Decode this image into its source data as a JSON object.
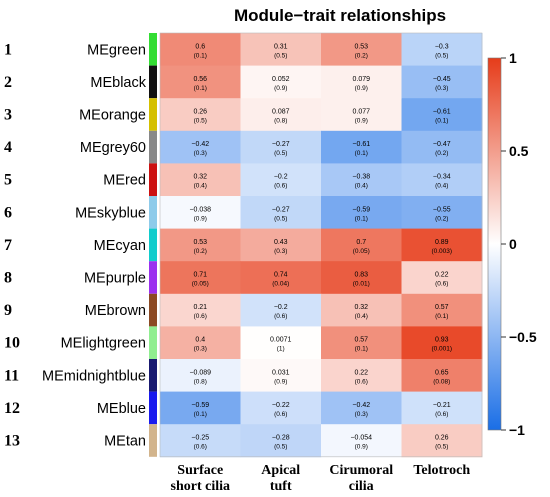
{
  "chart_data": {
    "type": "heatmap",
    "title": "Module−trait relationships",
    "columns": [
      [
        "Surface",
        "short cilia"
      ],
      [
        "Apical",
        "tuft"
      ],
      [
        "Cirumoral",
        "cilia"
      ],
      [
        "Telotroch"
      ]
    ],
    "rows": [
      {
        "num": "1",
        "label": "MEgreen",
        "color": "#33dd33",
        "values": [
          "0.6",
          "0.31",
          "0.53",
          "−0.3"
        ],
        "pvalues": [
          "(0.1)",
          "(0.5)",
          "(0.2)",
          "(0.5)"
        ]
      },
      {
        "num": "2",
        "label": "MEblack",
        "color": "#111111",
        "values": [
          "0.56",
          "0.052",
          "0.079",
          "−0.45"
        ],
        "pvalues": [
          "(0.1)",
          "(0.9)",
          "(0.9)",
          "(0.3)"
        ]
      },
      {
        "num": "3",
        "label": "MEorange",
        "color": "#d4c000",
        "values": [
          "0.26",
          "0.087",
          "0.077",
          "−0.61"
        ],
        "pvalues": [
          "(0.5)",
          "(0.8)",
          "(0.9)",
          "(0.1)"
        ]
      },
      {
        "num": "4",
        "label": "MEgrey60",
        "color": "#888888",
        "values": [
          "−0.42",
          "−0.27",
          "−0.61",
          "−0.47"
        ],
        "pvalues": [
          "(0.3)",
          "(0.5)",
          "(0.1)",
          "(0.2)"
        ]
      },
      {
        "num": "5",
        "label": "MEred",
        "color": "#cc1111",
        "values": [
          "0.32",
          "−0.2",
          "−0.38",
          "−0.34"
        ],
        "pvalues": [
          "(0.4)",
          "(0.6)",
          "(0.4)",
          "(0.4)"
        ]
      },
      {
        "num": "6",
        "label": "MEskyblue",
        "color": "#8ecbea",
        "values": [
          "−0.038",
          "−0.27",
          "−0.59",
          "−0.55"
        ],
        "pvalues": [
          "(0.9)",
          "(0.5)",
          "(0.1)",
          "(0.2)"
        ]
      },
      {
        "num": "7",
        "label": "MEcyan",
        "color": "#11cccc",
        "values": [
          "0.53",
          "0.43",
          "0.7",
          "0.89"
        ],
        "pvalues": [
          "(0.2)",
          "(0.3)",
          "(0.05)",
          "(0.003)"
        ]
      },
      {
        "num": "8",
        "label": "MEpurple",
        "color": "#9b30ef",
        "values": [
          "0.71",
          "0.74",
          "0.83",
          "0.22"
        ],
        "pvalues": [
          "(0.05)",
          "(0.04)",
          "(0.01)",
          "(0.6)"
        ]
      },
      {
        "num": "9",
        "label": "MEbrown",
        "color": "#8b4a24",
        "values": [
          "0.21",
          "−0.2",
          "0.32",
          "0.57"
        ],
        "pvalues": [
          "(0.6)",
          "(0.6)",
          "(0.4)",
          "(0.1)"
        ]
      },
      {
        "num": "10",
        "label": "MElightgreen",
        "color": "#90ee90",
        "values": [
          "0.4",
          "0.0071",
          "0.57",
          "0.93"
        ],
        "pvalues": [
          "(0.3)",
          "(1)",
          "(0.1)",
          "(0.001)"
        ]
      },
      {
        "num": "11",
        "label": "MEmidnightblue",
        "color": "#191970",
        "values": [
          "−0.089",
          "0.031",
          "0.22",
          "0.65"
        ],
        "pvalues": [
          "(0.8)",
          "(0.9)",
          "(0.6)",
          "(0.08)"
        ]
      },
      {
        "num": "12",
        "label": "MEblue",
        "color": "#1a1aee",
        "values": [
          "−0.59",
          "−0.22",
          "−0.42",
          "−0.21"
        ],
        "pvalues": [
          "(0.1)",
          "(0.6)",
          "(0.3)",
          "(0.6)"
        ]
      },
      {
        "num": "13",
        "label": "MEtan",
        "color": "#d2b48c",
        "values": [
          "−0.25",
          "−0.28",
          "−0.054",
          "0.26"
        ],
        "pvalues": [
          "(0.6)",
          "(0.5)",
          "(0.9)",
          "(0.5)"
        ]
      }
    ],
    "colorscale": {
      "min": -1,
      "max": 1,
      "low_color": "#1a6ee6",
      "mid_color": "#ffffff",
      "high_color": "#e63c1a",
      "ticks": [
        "1",
        "0.5",
        "0",
        "−0.5",
        "−1"
      ],
      "tick_values": [
        1,
        0.5,
        0,
        -0.5,
        -1
      ]
    }
  }
}
